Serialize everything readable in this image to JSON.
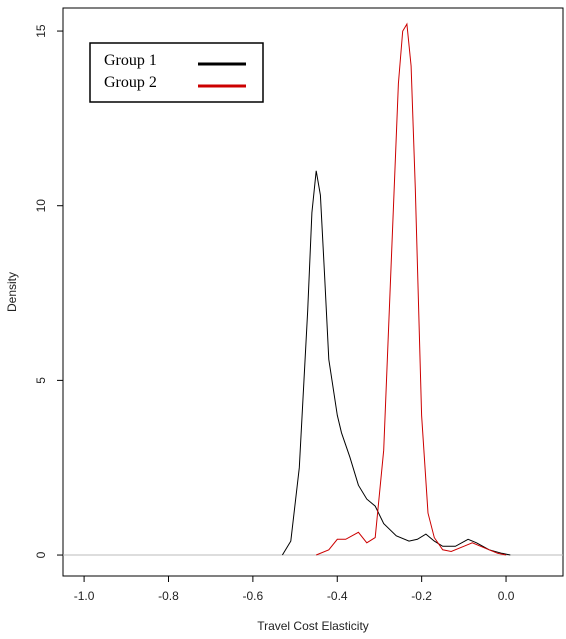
{
  "chart_data": {
    "type": "line",
    "x_label": "Travel Cost Elasticity",
    "y_label": "Density",
    "xlim": [
      -1.05,
      0.135
    ],
    "ylim": [
      -0.6,
      15.66
    ],
    "xticks": [
      {
        "value": -1.0,
        "label": "-1.0"
      },
      {
        "value": -0.8,
        "label": "-0.8"
      },
      {
        "value": -0.6,
        "label": "-0.6"
      },
      {
        "value": -0.4,
        "label": "-0.4"
      },
      {
        "value": -0.2,
        "label": "-0.2"
      },
      {
        "value": 0,
        "label": "0.0"
      }
    ],
    "yticks": [
      0,
      5,
      10,
      15
    ],
    "reference_line": {
      "value": 0,
      "color": "#bbbbbb"
    },
    "legend": "top-left",
    "series": [
      {
        "name": "Group 1",
        "color": "#000000",
        "x": [
          -0.53,
          -0.51,
          -0.49,
          -0.47,
          -0.46,
          -0.45,
          -0.44,
          -0.43,
          -0.42,
          -0.4,
          -0.39,
          -0.37,
          -0.35,
          -0.33,
          -0.31,
          -0.29,
          -0.26,
          -0.23,
          -0.21,
          -0.19,
          -0.17,
          -0.15,
          -0.12,
          -0.09,
          -0.07,
          -0.04,
          -0.01,
          0.01
        ],
        "values": [
          0,
          0.4,
          2.5,
          7,
          9.8,
          11,
          10.3,
          8,
          5.6,
          4,
          3.5,
          2.8,
          2.0,
          1.6,
          1.4,
          0.9,
          0.55,
          0.4,
          0.45,
          0.6,
          0.4,
          0.25,
          0.25,
          0.45,
          0.35,
          0.15,
          0.05,
          0
        ]
      },
      {
        "name": "Group 2",
        "color": "#cc0000",
        "x": [
          -0.45,
          -0.42,
          -0.4,
          -0.38,
          -0.35,
          -0.33,
          -0.31,
          -0.29,
          -0.27,
          -0.255,
          -0.245,
          -0.235,
          -0.225,
          -0.215,
          -0.2,
          -0.185,
          -0.17,
          -0.15,
          -0.13,
          -0.1,
          -0.08,
          -0.05,
          -0.02,
          0.0
        ],
        "values": [
          0,
          0.15,
          0.45,
          0.45,
          0.65,
          0.35,
          0.5,
          3,
          9,
          13.5,
          15,
          15.2,
          14,
          10.5,
          4,
          1.2,
          0.5,
          0.15,
          0.1,
          0.25,
          0.35,
          0.2,
          0.05,
          0
        ]
      }
    ]
  }
}
